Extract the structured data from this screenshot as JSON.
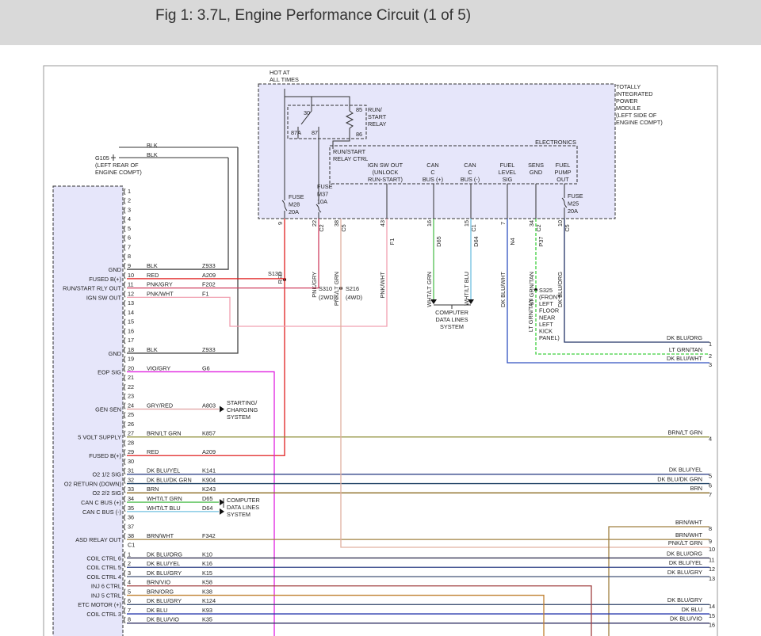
{
  "header": {
    "title": "Fig 1: 3.7L, Engine Performance Circuit (1 of 5)"
  },
  "tipm": {
    "name": [
      "TOTALLY",
      "INTEGRATED",
      "POWER",
      "MODULE",
      "(LEFT SIDE OF",
      "ENGINE COMPT)"
    ],
    "hot": [
      "HOT AT",
      "ALL TIMES"
    ],
    "relay": {
      "name": [
        "RUN/",
        "START",
        "RELAY"
      ],
      "pins": [
        "30",
        "85",
        "87A",
        "87",
        "86"
      ]
    },
    "electronics": "ELECTRONICS",
    "relay_ctrl": [
      "RUN/START",
      "RELAY CTRL"
    ],
    "outputs": [
      [
        "IGN SW OUT",
        "(UNLOCK",
        "RUN-START)"
      ],
      [
        "CAN",
        "C",
        "BUS (+)"
      ],
      [
        "CAN",
        "C",
        "BUS (-)"
      ],
      [
        "FUEL",
        "LEVEL",
        "SIG"
      ],
      [
        "SENS",
        "GND"
      ],
      [
        "FUEL",
        "PUMP",
        "OUT"
      ]
    ],
    "fuses": [
      [
        "FUSE",
        "M28",
        "20A"
      ],
      [
        "FUSE",
        "M37",
        "10A"
      ],
      [
        "FUSE",
        "M25",
        "20A"
      ]
    ],
    "pins": [
      {
        "pin": "9",
        "wire": "RED"
      },
      {
        "pin": "22",
        "conn": "C2",
        "wire": "PNK/GRY"
      },
      {
        "pin": "38",
        "conn": "C5",
        "wire": "PNK/LT GRN"
      },
      {
        "pin": "43",
        "wire": "PNK/WHT",
        "circuit": "F1"
      },
      {
        "pin": "16",
        "wire": "WHT/LT GRN",
        "circuit": "D65"
      },
      {
        "pin": "15",
        "conn": "C1",
        "wire": "WHT/LT BLU",
        "circuit": "D64"
      },
      {
        "pin": "7",
        "wire": "DK BLU/WHT",
        "circuit": "N4"
      },
      {
        "pin": "34",
        "conn": "C2",
        "wire": "LT GRN/TAN",
        "circuit": "P37"
      },
      {
        "pin": "10",
        "conn": "C5",
        "wire": "DK BLU/ORG"
      }
    ]
  },
  "ground": {
    "name": "G105",
    "location": [
      "(LEFT REAR OF",
      "ENGINE COMPT)"
    ],
    "wires": [
      "BLK",
      "BLK"
    ]
  },
  "splices": {
    "s131": "S131",
    "s310": [
      "S310",
      "(2WD)"
    ],
    "s216": [
      "S216",
      "(4WD)"
    ],
    "s325": [
      "S325",
      "(FRONT",
      "LEFT",
      "FLOOR",
      "NEAR",
      "LEFT",
      "KICK",
      "PANEL)"
    ],
    "s325_wire": "LT GRN/TAN"
  },
  "computer_data_lines": [
    "COMPUTER",
    "DATA LINES",
    "SYSTEM"
  ],
  "computer_data_lines_2": [
    "COMPUTER",
    "DATA LINES",
    "SYSTEM"
  ],
  "charging": [
    "STARTING/",
    "CHARGING",
    "SYSTEM"
  ],
  "pcm": {
    "pins": [
      {
        "pin": "1"
      },
      {
        "pin": "2"
      },
      {
        "pin": "3"
      },
      {
        "pin": "4"
      },
      {
        "pin": "5"
      },
      {
        "pin": "6"
      },
      {
        "pin": "7"
      },
      {
        "pin": "8"
      },
      {
        "pin": "9",
        "function": "GND",
        "wire": "BLK",
        "circuit": "Z933"
      },
      {
        "pin": "10",
        "function": "FUSED B(+)",
        "wire": "RED",
        "circuit": "A209"
      },
      {
        "pin": "11",
        "function": "RUN/START RLY OUT",
        "wire": "PNK/GRY",
        "circuit": "F202"
      },
      {
        "pin": "12",
        "function": "IGN SW OUT",
        "wire": "PNK/WHT",
        "circuit": "F1"
      },
      {
        "pin": "13"
      },
      {
        "pin": "14"
      },
      {
        "pin": "15"
      },
      {
        "pin": "16"
      },
      {
        "pin": "17"
      },
      {
        "pin": "18",
        "function": "GND",
        "wire": "BLK",
        "circuit": "Z933"
      },
      {
        "pin": "19"
      },
      {
        "pin": "20",
        "function": "EOP SIG",
        "wire": "VIO/GRY",
        "circuit": "G6"
      },
      {
        "pin": "21"
      },
      {
        "pin": "22"
      },
      {
        "pin": "23"
      },
      {
        "pin": "24",
        "function": "GEN SEN",
        "wire": "GRY/RED",
        "circuit": "A803"
      },
      {
        "pin": "25"
      },
      {
        "pin": "26"
      },
      {
        "pin": "27",
        "function": "5 VOLT SUPPLY",
        "wire": "BRN/LT GRN",
        "circuit": "K857"
      },
      {
        "pin": "28"
      },
      {
        "pin": "29",
        "function": "FUSED B(+)",
        "wire": "RED",
        "circuit": "A209"
      },
      {
        "pin": "30"
      },
      {
        "pin": "31",
        "function": "O2 1/2 SIG",
        "wire": "DK BLU/YEL",
        "circuit": "K141"
      },
      {
        "pin": "32",
        "function": "O2 RETURN (DOWN)",
        "wire": "DK BLU/DK GRN",
        "circuit": "K904"
      },
      {
        "pin": "33",
        "function": "O2 2/2 SIG",
        "wire": "BRN",
        "circuit": "K243"
      },
      {
        "pin": "34",
        "function": "CAN C BUS (+)",
        "wire": "WHT/LT GRN",
        "circuit": "D65"
      },
      {
        "pin": "35",
        "function": "CAN C BUS (-)",
        "wire": "WHT/LT BLU",
        "circuit": "D64"
      },
      {
        "pin": "36"
      },
      {
        "pin": "37"
      },
      {
        "pin": "38",
        "function": "ASD RELAY OUT",
        "wire": "BRN/WHT",
        "circuit": "F342"
      }
    ],
    "c1_label": "C1",
    "c1_pins": [
      {
        "pin": "1",
        "function": "COIL CTRL 6",
        "wire": "DK BLU/ORG",
        "circuit": "K10"
      },
      {
        "pin": "2",
        "function": "COIL CTRL 5",
        "wire": "DK BLU/YEL",
        "circuit": "K16"
      },
      {
        "pin": "3",
        "function": "COIL CTRL 4",
        "wire": "DK BLU/GRY",
        "circuit": "K15"
      },
      {
        "pin": "4",
        "function": "INJ 6 CTRL",
        "wire": "BRN/VIO",
        "circuit": "K58"
      },
      {
        "pin": "5",
        "function": "INJ 5 CTRL",
        "wire": "BRN/ORG",
        "circuit": "K38"
      },
      {
        "pin": "6",
        "function": "ETC MOTOR (+)",
        "wire": "DK BLU/GRY",
        "circuit": "K124"
      },
      {
        "pin": "7",
        "function": "COIL CTRL 3",
        "wire": "DK BLU",
        "circuit": "K93"
      },
      {
        "pin": "8",
        "wire": "DK BLU/VIO",
        "circuit": "K35"
      }
    ]
  },
  "right": [
    {
      "num": "1",
      "wire": "DK BLU/ORG"
    },
    {
      "num": "2",
      "wire": "LT GRN/TAN"
    },
    {
      "num": "3",
      "wire": "DK BLU/WHT"
    },
    {
      "num": "4",
      "wire": "BRN/LT GRN"
    },
    {
      "num": "5",
      "wire": "DK BLU/YEL"
    },
    {
      "num": "6",
      "wire": "DK BLU/DK GRN"
    },
    {
      "num": "7",
      "wire": "BRN"
    },
    {
      "num": "8",
      "wire": "BRN/WHT"
    },
    {
      "num": "9",
      "wire": "BRN/WHT"
    },
    {
      "num": "10",
      "wire": "PNK/LT GRN"
    },
    {
      "num": "11",
      "wire": "DK BLU/ORG"
    },
    {
      "num": "12",
      "wire": "DK BLU/YEL"
    },
    {
      "num": "13",
      "wire": "DK BLU/GRY"
    },
    {
      "num": "14",
      "wire": "DK BLU/GRY"
    },
    {
      "num": "15",
      "wire": "DK BLU"
    },
    {
      "num": "16",
      "wire": "DK BLU/VIO"
    }
  ]
}
